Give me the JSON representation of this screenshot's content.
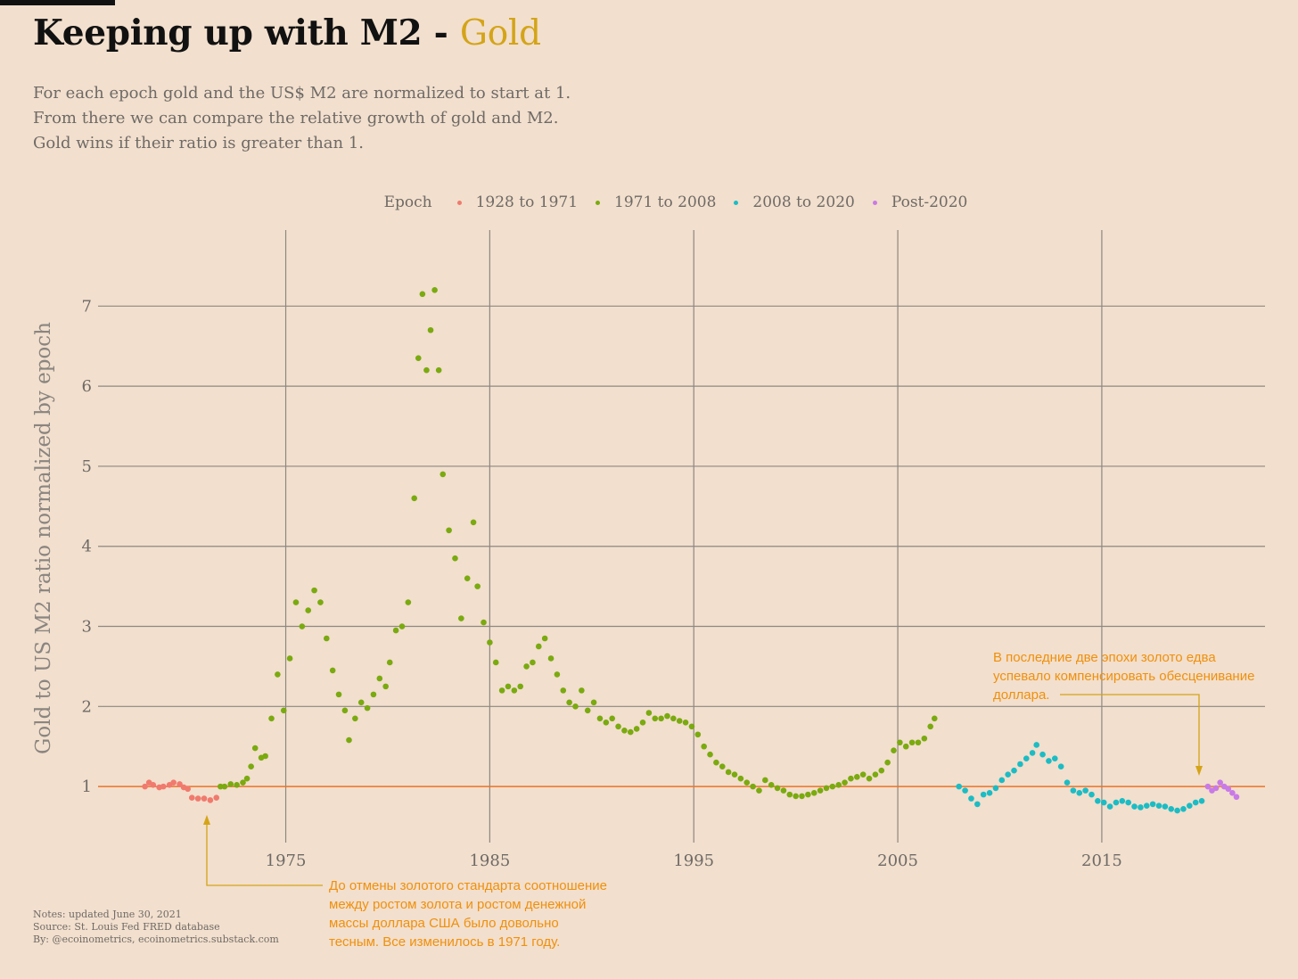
{
  "title": {
    "main": "Keeping up with M2",
    "separator": " - ",
    "accent": "Gold"
  },
  "subtitle": [
    "For each epoch gold and the US$ M2 are normalized to start at 1.",
    "From there we can compare the relative growth of gold and M2.",
    "Gold wins if their ratio is greater than 1."
  ],
  "legend": {
    "title": "Epoch"
  },
  "colors": {
    "background": "#f2dfcd",
    "grid": "#8c8882",
    "reference_line": "#e8742a",
    "annotation": "#f0900c",
    "annotation_arrow": "#d4a418"
  },
  "notes": [
    "Notes: updated June 30, 2021",
    "Source: St. Louis Fed FRED database",
    "By: @ecoinometrics, ecoinometrics.substack.com"
  ],
  "annotations": [
    {
      "id": "bottom",
      "lines": [
        "До отмены золотого стандарта соотношение",
        "между ростом золота и ростом денежной",
        "массы доллара США было довольно",
        "тесным. Все изменилось в 1971 году."
      ]
    },
    {
      "id": "top-right",
      "lines": [
        "В последние две эпохи золото едва",
        "успевало компенсировать обесценивание",
        "доллара."
      ]
    }
  ],
  "chart_data": {
    "type": "scatter",
    "title": "Keeping up with M2 - Gold",
    "xlabel": "",
    "ylabel": "Gold to US M2 ratio normalized by epoch",
    "x_ticks": [
      1975,
      1985,
      1995,
      2005,
      2015
    ],
    "y_ticks": [
      1,
      2,
      3,
      4,
      5,
      6,
      7
    ],
    "xlim": [
      1965.8,
      2023.0
    ],
    "ylim": [
      0.3,
      7.95
    ],
    "reference_line": {
      "y": 1
    },
    "grid": true,
    "legend_position": "top",
    "series": [
      {
        "name": "1928 to 1971",
        "color": "#f07a6e",
        "points": [
          [
            1968.1,
            1.0
          ],
          [
            1968.3,
            1.05
          ],
          [
            1968.5,
            1.02
          ],
          [
            1968.8,
            0.99
          ],
          [
            1969.0,
            1.0
          ],
          [
            1969.3,
            1.02
          ],
          [
            1969.5,
            1.05
          ],
          [
            1969.8,
            1.03
          ],
          [
            1970.0,
            0.99
          ],
          [
            1970.2,
            0.97
          ],
          [
            1970.4,
            0.86
          ],
          [
            1970.7,
            0.85
          ],
          [
            1971.0,
            0.85
          ],
          [
            1971.3,
            0.83
          ],
          [
            1971.6,
            0.86
          ]
        ]
      },
      {
        "name": "1971 to 2008",
        "color": "#7aaa10",
        "points": [
          [
            1971.8,
            1.0
          ],
          [
            1972.0,
            1.0
          ],
          [
            1972.3,
            1.03
          ],
          [
            1972.6,
            1.02
          ],
          [
            1972.9,
            1.05
          ],
          [
            1973.1,
            1.1
          ],
          [
            1973.3,
            1.25
          ],
          [
            1973.5,
            1.48
          ],
          [
            1973.8,
            1.36
          ],
          [
            1974.0,
            1.38
          ],
          [
            1974.3,
            1.85
          ],
          [
            1974.6,
            2.4
          ],
          [
            1974.9,
            1.95
          ],
          [
            1975.2,
            2.6
          ],
          [
            1975.5,
            3.3
          ],
          [
            1975.8,
            3.0
          ],
          [
            1976.1,
            3.2
          ],
          [
            1976.4,
            3.45
          ],
          [
            1976.7,
            3.3
          ],
          [
            1977.0,
            2.85
          ],
          [
            1977.3,
            2.45
          ],
          [
            1977.6,
            2.15
          ],
          [
            1977.9,
            1.95
          ],
          [
            1978.1,
            1.58
          ],
          [
            1978.4,
            1.85
          ],
          [
            1978.7,
            2.05
          ],
          [
            1979.0,
            1.98
          ],
          [
            1979.3,
            2.15
          ],
          [
            1979.6,
            2.35
          ],
          [
            1979.9,
            2.25
          ],
          [
            1980.1,
            2.55
          ],
          [
            1980.4,
            2.95
          ],
          [
            1980.7,
            3.0
          ],
          [
            1981.0,
            3.3
          ],
          [
            1981.3,
            4.6
          ],
          [
            1981.5,
            6.35
          ],
          [
            1981.7,
            7.15
          ],
          [
            1981.9,
            6.2
          ],
          [
            1982.1,
            6.7
          ],
          [
            1982.3,
            7.2
          ],
          [
            1982.5,
            6.2
          ],
          [
            1982.7,
            4.9
          ],
          [
            1983.0,
            4.2
          ],
          [
            1983.3,
            3.85
          ],
          [
            1983.6,
            3.1
          ],
          [
            1983.9,
            3.6
          ],
          [
            1984.2,
            4.3
          ],
          [
            1984.4,
            3.5
          ],
          [
            1984.7,
            3.05
          ],
          [
            1985.0,
            2.8
          ],
          [
            1985.3,
            2.55
          ],
          [
            1985.6,
            2.2
          ],
          [
            1985.9,
            2.25
          ],
          [
            1986.2,
            2.2
          ],
          [
            1986.5,
            2.25
          ],
          [
            1986.8,
            2.5
          ],
          [
            1987.1,
            2.55
          ],
          [
            1987.4,
            2.75
          ],
          [
            1987.7,
            2.85
          ],
          [
            1988.0,
            2.6
          ],
          [
            1988.3,
            2.4
          ],
          [
            1988.6,
            2.2
          ],
          [
            1988.9,
            2.05
          ],
          [
            1989.2,
            2.0
          ],
          [
            1989.5,
            2.2
          ],
          [
            1989.8,
            1.95
          ],
          [
            1990.1,
            2.05
          ],
          [
            1990.4,
            1.85
          ],
          [
            1990.7,
            1.8
          ],
          [
            1991.0,
            1.85
          ],
          [
            1991.3,
            1.75
          ],
          [
            1991.6,
            1.7
          ],
          [
            1991.9,
            1.68
          ],
          [
            1992.2,
            1.72
          ],
          [
            1992.5,
            1.8
          ],
          [
            1992.8,
            1.92
          ],
          [
            1993.1,
            1.85
          ],
          [
            1993.4,
            1.85
          ],
          [
            1993.7,
            1.88
          ],
          [
            1994.0,
            1.85
          ],
          [
            1994.3,
            1.82
          ],
          [
            1994.6,
            1.8
          ],
          [
            1994.9,
            1.75
          ],
          [
            1995.2,
            1.65
          ],
          [
            1995.5,
            1.5
          ],
          [
            1995.8,
            1.4
          ],
          [
            1996.1,
            1.3
          ],
          [
            1996.4,
            1.25
          ],
          [
            1996.7,
            1.18
          ],
          [
            1997.0,
            1.15
          ],
          [
            1997.3,
            1.1
          ],
          [
            1997.6,
            1.05
          ],
          [
            1997.9,
            1.0
          ],
          [
            1998.2,
            0.95
          ],
          [
            1998.5,
            1.08
          ],
          [
            1998.8,
            1.02
          ],
          [
            1999.1,
            0.98
          ],
          [
            1999.4,
            0.95
          ],
          [
            1999.7,
            0.9
          ],
          [
            2000.0,
            0.88
          ],
          [
            2000.3,
            0.88
          ],
          [
            2000.6,
            0.9
          ],
          [
            2000.9,
            0.92
          ],
          [
            2001.2,
            0.95
          ],
          [
            2001.5,
            0.98
          ],
          [
            2001.8,
            1.0
          ],
          [
            2002.1,
            1.02
          ],
          [
            2002.4,
            1.05
          ],
          [
            2002.7,
            1.1
          ],
          [
            2003.0,
            1.12
          ],
          [
            2003.3,
            1.15
          ],
          [
            2003.6,
            1.1
          ],
          [
            2003.9,
            1.15
          ],
          [
            2004.2,
            1.2
          ],
          [
            2004.5,
            1.3
          ],
          [
            2004.8,
            1.45
          ],
          [
            2005.1,
            1.55
          ],
          [
            2005.4,
            1.5
          ],
          [
            2005.7,
            1.55
          ],
          [
            2006.0,
            1.55
          ],
          [
            2006.3,
            1.6
          ],
          [
            2006.6,
            1.75
          ],
          [
            2006.8,
            1.85
          ]
        ]
      },
      {
        "name": "2008 to 2020",
        "color": "#1cbcc4",
        "points": [
          [
            2008.0,
            1.0
          ],
          [
            2008.3,
            0.95
          ],
          [
            2008.6,
            0.85
          ],
          [
            2008.9,
            0.78
          ],
          [
            2009.2,
            0.9
          ],
          [
            2009.5,
            0.92
          ],
          [
            2009.8,
            0.98
          ],
          [
            2010.1,
            1.08
          ],
          [
            2010.4,
            1.15
          ],
          [
            2010.7,
            1.2
          ],
          [
            2011.0,
            1.28
          ],
          [
            2011.3,
            1.35
          ],
          [
            2011.6,
            1.42
          ],
          [
            2011.8,
            1.52
          ],
          [
            2012.1,
            1.4
          ],
          [
            2012.4,
            1.32
          ],
          [
            2012.7,
            1.35
          ],
          [
            2013.0,
            1.25
          ],
          [
            2013.3,
            1.05
          ],
          [
            2013.6,
            0.95
          ],
          [
            2013.9,
            0.92
          ],
          [
            2014.2,
            0.95
          ],
          [
            2014.5,
            0.9
          ],
          [
            2014.8,
            0.82
          ],
          [
            2015.1,
            0.8
          ],
          [
            2015.4,
            0.75
          ],
          [
            2015.7,
            0.8
          ],
          [
            2016.0,
            0.82
          ],
          [
            2016.3,
            0.8
          ],
          [
            2016.6,
            0.75
          ],
          [
            2016.9,
            0.74
          ],
          [
            2017.2,
            0.76
          ],
          [
            2017.5,
            0.78
          ],
          [
            2017.8,
            0.76
          ],
          [
            2018.1,
            0.75
          ],
          [
            2018.4,
            0.72
          ],
          [
            2018.7,
            0.7
          ],
          [
            2019.0,
            0.72
          ],
          [
            2019.3,
            0.76
          ],
          [
            2019.6,
            0.8
          ],
          [
            2019.9,
            0.82
          ]
        ]
      },
      {
        "name": "Post-2020",
        "color": "#c87ae6",
        "points": [
          [
            2020.2,
            1.0
          ],
          [
            2020.4,
            0.95
          ],
          [
            2020.6,
            0.98
          ],
          [
            2020.8,
            1.05
          ],
          [
            2021.0,
            1.0
          ],
          [
            2021.2,
            0.97
          ],
          [
            2021.4,
            0.92
          ],
          [
            2021.6,
            0.87
          ]
        ]
      }
    ]
  }
}
